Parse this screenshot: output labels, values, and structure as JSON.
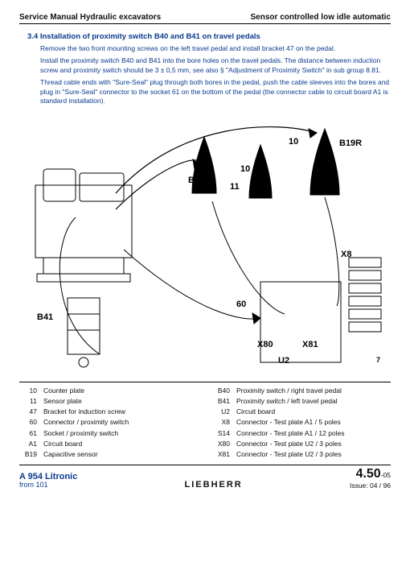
{
  "header": {
    "left": "Service Manual   Hydraulic excavators",
    "right": "Sensor controlled low idle automatic"
  },
  "section": {
    "number": "3.4",
    "title": "Installation of proximity switch B40 and B41 on travel pedals",
    "p1": "Remove the two front mounting screws on the left travel pedal and install bracket 47 on the pedal.",
    "p2": "Install the proximity switch  B40 and B41 into the bore holes on the travel pedals. The distance between induction screw and proximity switch should be 3 ± 0,5 mm, see also § \"Adjustment of Proximity Switch\" in sub group 8.81.",
    "p3": "Thread cable ends with  \"Sure-Seal\" plug through both bores in the pedal, push the cable sleeves into the bores and plug in  \"Sure-Seal\" connector to the socket 61 on the bottom of the pedal (the connector cable to circuit board A1 is standard installation)."
  },
  "diagram": {
    "callouts": {
      "B19R": "B19R",
      "B19L": "B19L",
      "B41": "B41",
      "ten_a": "10",
      "ten_b": "10",
      "eleven": "11",
      "sixty": "60",
      "X8": "X8",
      "X80": "X80",
      "X81": "X81",
      "U2": "U2",
      "seven": "7"
    },
    "legend_left": [
      {
        "k": "10",
        "v": "Counter plate"
      },
      {
        "k": "11",
        "v": "Sensor plate"
      },
      {
        "k": "47",
        "v": "Bracket for induction screw"
      },
      {
        "k": "60",
        "v": "Connector / proximity switch"
      },
      {
        "k": "61",
        "v": "Socket / proximity switch"
      },
      {
        "k": "A1",
        "v": "Circuit board"
      },
      {
        "k": "B19",
        "v": "Capacitive sensor"
      }
    ],
    "legend_right": [
      {
        "k": "B40",
        "v": "Proximity switch / right travel pedal"
      },
      {
        "k": "B41",
        "v": "Proximity switch / left travel pedal"
      },
      {
        "k": "U2",
        "v": "Circuit board"
      },
      {
        "k": "X8",
        "v": "Connector - Test plate A1 / 5 poles"
      },
      {
        "k": "S14",
        "v": "Connector - Test plate A1 / 12 poles"
      },
      {
        "k": "X80",
        "v": "Connector - Test plate U2 / 3 poles"
      },
      {
        "k": "X81",
        "v": "Connector - Test plate U2 / 3 poles"
      }
    ]
  },
  "footer": {
    "model": "A 954 Litronic",
    "from": "from 101",
    "brand": "LIEBHERR",
    "page_main": "4.50",
    "page_sub": "-05",
    "issue": "Issue: 04 / 96"
  }
}
